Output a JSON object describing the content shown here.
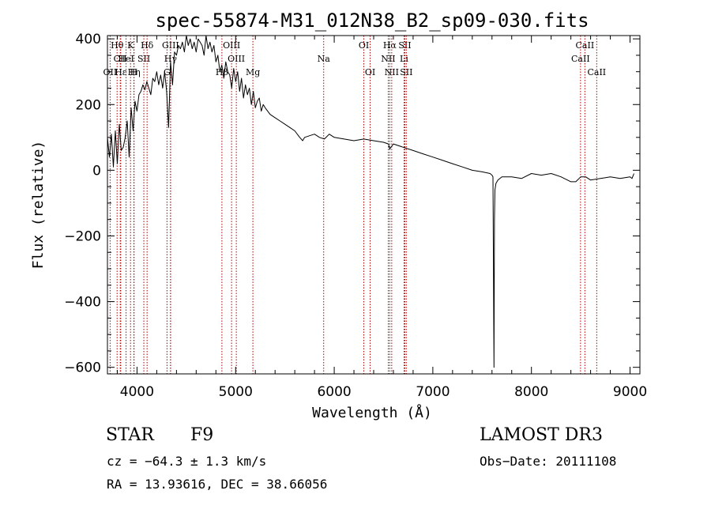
{
  "chart_data": {
    "type": "line",
    "title": "spec-55874-M31_012N38_B2_sp09-030.fits",
    "xlabel": "Wavelength (Å)",
    "ylabel": "Flux (relative)",
    "xlim": [
      3700,
      9100
    ],
    "ylim": [
      -620,
      410
    ],
    "xticks": [
      4000,
      5000,
      6000,
      7000,
      8000,
      9000
    ],
    "yticks": [
      -600,
      -400,
      -200,
      0,
      200,
      400
    ],
    "xtick_labels": [
      "4000",
      "5000",
      "6000",
      "7000",
      "8000",
      "9000"
    ],
    "ytick_labels": [
      "−600",
      "−400",
      "−200",
      "0",
      "200",
      "400"
    ],
    "series": [
      {
        "name": "flux",
        "x": [
          3700,
          3720,
          3740,
          3760,
          3780,
          3800,
          3820,
          3840,
          3860,
          3880,
          3900,
          3920,
          3940,
          3960,
          3980,
          4000,
          4020,
          4040,
          4060,
          4080,
          4100,
          4120,
          4140,
          4160,
          4180,
          4200,
          4220,
          4240,
          4260,
          4280,
          4300,
          4320,
          4340,
          4360,
          4380,
          4400,
          4420,
          4440,
          4460,
          4480,
          4500,
          4520,
          4540,
          4560,
          4580,
          4600,
          4620,
          4640,
          4660,
          4680,
          4700,
          4720,
          4740,
          4760,
          4780,
          4800,
          4820,
          4840,
          4860,
          4880,
          4900,
          4920,
          4940,
          4960,
          4980,
          5000,
          5020,
          5040,
          5060,
          5080,
          5100,
          5120,
          5140,
          5160,
          5180,
          5200,
          5220,
          5240,
          5260,
          5280,
          5300,
          5350,
          5400,
          5450,
          5500,
          5550,
          5600,
          5650,
          5680,
          5700,
          5750,
          5800,
          5850,
          5900,
          5950,
          6000,
          6100,
          6200,
          6300,
          6400,
          6500,
          6550,
          6563,
          6600,
          6700,
          6800,
          6900,
          7000,
          7100,
          7200,
          7300,
          7400,
          7500,
          7580,
          7600,
          7610,
          7620,
          7625,
          7630,
          7640,
          7660,
          7700,
          7800,
          7900,
          8000,
          8100,
          8200,
          8300,
          8400,
          8450,
          8500,
          8550,
          8600,
          8700,
          8800,
          8900,
          9000,
          9020,
          9040
        ],
        "y": [
          100,
          40,
          110,
          10,
          120,
          20,
          140,
          60,
          70,
          100,
          150,
          40,
          190,
          120,
          210,
          180,
          230,
          240,
          260,
          245,
          270,
          250,
          230,
          280,
          270,
          300,
          260,
          290,
          250,
          300,
          240,
          130,
          330,
          260,
          360,
          350,
          380,
          370,
          390,
          360,
          410,
          380,
          400,
          370,
          390,
          360,
          400,
          390,
          380,
          350,
          410,
          370,
          390,
          360,
          380,
          330,
          350,
          300,
          320,
          280,
          330,
          300,
          290,
          250,
          310,
          270,
          300,
          240,
          280,
          220,
          260,
          230,
          250,
          200,
          240,
          190,
          210,
          220,
          180,
          200,
          190,
          170,
          160,
          150,
          140,
          130,
          120,
          100,
          90,
          100,
          105,
          110,
          100,
          95,
          110,
          100,
          95,
          90,
          95,
          90,
          85,
          80,
          65,
          80,
          70,
          60,
          50,
          40,
          30,
          20,
          10,
          0,
          -5,
          -10,
          -15,
          -20,
          -600,
          -150,
          -60,
          -40,
          -30,
          -20,
          -20,
          -25,
          -10,
          -15,
          -10,
          -20,
          -35,
          -35,
          -20,
          -20,
          -30,
          -25,
          -20,
          -25,
          -20,
          -25,
          -10
        ]
      }
    ],
    "lines": [
      {
        "name": "Hθ",
        "x": 3798,
        "row": 0
      },
      {
        "name": "CII",
        "x": 3830,
        "row": 1
      },
      {
        "name": "OII",
        "x": 3727,
        "row": 2
      },
      {
        "name": "Hε",
        "x": 3835,
        "row": 2
      },
      {
        "name": "K",
        "x": 3934,
        "row": 0
      },
      {
        "name": "HeI",
        "x": 3889,
        "row": 1
      },
      {
        "name": "Hη",
        "x": 3970,
        "row": 2
      },
      {
        "name": "SII",
        "x": 4069,
        "row": 1
      },
      {
        "name": "Hδ",
        "x": 4102,
        "row": 0
      },
      {
        "name": "H",
        "x": 3968,
        "row": 2
      },
      {
        "name": "GIII",
        "x": 4340,
        "row": 0
      },
      {
        "name": "Hγ",
        "x": 4340,
        "row": 1
      },
      {
        "name": "G",
        "x": 4304,
        "row": 2
      },
      {
        "name": "OIII",
        "x": 4959,
        "row": 0
      },
      {
        "name": "OIII",
        "x": 5007,
        "row": 1
      },
      {
        "name": "Hβ",
        "x": 4861,
        "row": 2
      },
      {
        "name": "Mg",
        "x": 5175,
        "row": 2
      },
      {
        "name": "Na",
        "x": 5893,
        "row": 1
      },
      {
        "name": "OI",
        "x": 6300,
        "row": 0
      },
      {
        "name": "OI",
        "x": 6364,
        "row": 2
      },
      {
        "name": "Hα",
        "x": 6563,
        "row": 0
      },
      {
        "name": "NII",
        "x": 6548,
        "row": 1
      },
      {
        "name": "NII",
        "x": 6583,
        "row": 2
      },
      {
        "name": "SII",
        "x": 6716,
        "row": 0
      },
      {
        "name": "Li",
        "x": 6708,
        "row": 1
      },
      {
        "name": "SII",
        "x": 6731,
        "row": 2
      },
      {
        "name": "CaII",
        "x": 8542,
        "row": 0
      },
      {
        "name": "CaII",
        "x": 8498,
        "row": 1
      },
      {
        "name": "CaII",
        "x": 8662,
        "row": 2
      }
    ]
  },
  "info": {
    "object_class": "STAR",
    "subclass": "F9",
    "survey": "LAMOST DR3",
    "cz": "cz = −64.3 ± 1.3 km/s",
    "obs_date": "Obs−Date: 20111108",
    "radec": "RA =  13.93616, DEC =  38.66056"
  }
}
